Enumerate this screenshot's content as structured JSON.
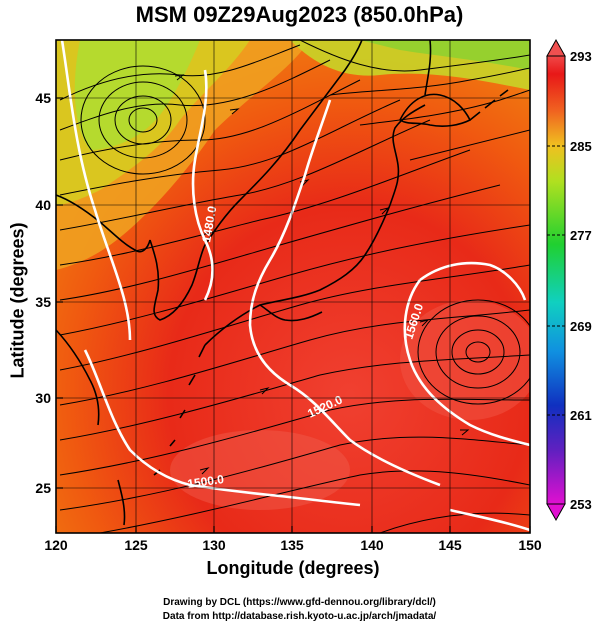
{
  "title": "MSM 09Z29Aug2023 (850.0hPa)",
  "axes": {
    "x": {
      "label": "Longitude (degrees)",
      "ticks": [
        "120",
        "125",
        "130",
        "135",
        "140",
        "145",
        "150"
      ],
      "values": [
        120,
        125,
        130,
        135,
        140,
        145,
        150
      ],
      "range": [
        120,
        150
      ]
    },
    "y": {
      "label": "Latitude  (degrees)",
      "ticks": [
        "25",
        "30",
        "35",
        "40",
        "45"
      ],
      "values": [
        25,
        30,
        35,
        40,
        45
      ],
      "range": [
        22.4,
        47.6
      ]
    }
  },
  "colorbar": {
    "ticks": [
      "293",
      "285",
      "277",
      "269",
      "261",
      "253"
    ],
    "values": [
      293,
      285,
      277,
      269,
      261,
      253
    ],
    "range": [
      253,
      293
    ],
    "colors": [
      "#d010c0",
      "#2020b0",
      "#1070e0",
      "#10c8d0",
      "#20d040",
      "#b0e020",
      "#f0b020",
      "#f06020",
      "#e81818",
      "#f05050"
    ]
  },
  "contours": [
    {
      "label": "1480.0"
    },
    {
      "label": "1500.0"
    },
    {
      "label": "1520.0"
    },
    {
      "label": "1560.0"
    }
  ],
  "credits": {
    "line1": "Drawing by DCL (https://www.gfd-dennou.org/library/dcl/)",
    "line2": "Data from http://database.rish.kyoto-u.ac.jp/arch/jmadata/"
  }
}
